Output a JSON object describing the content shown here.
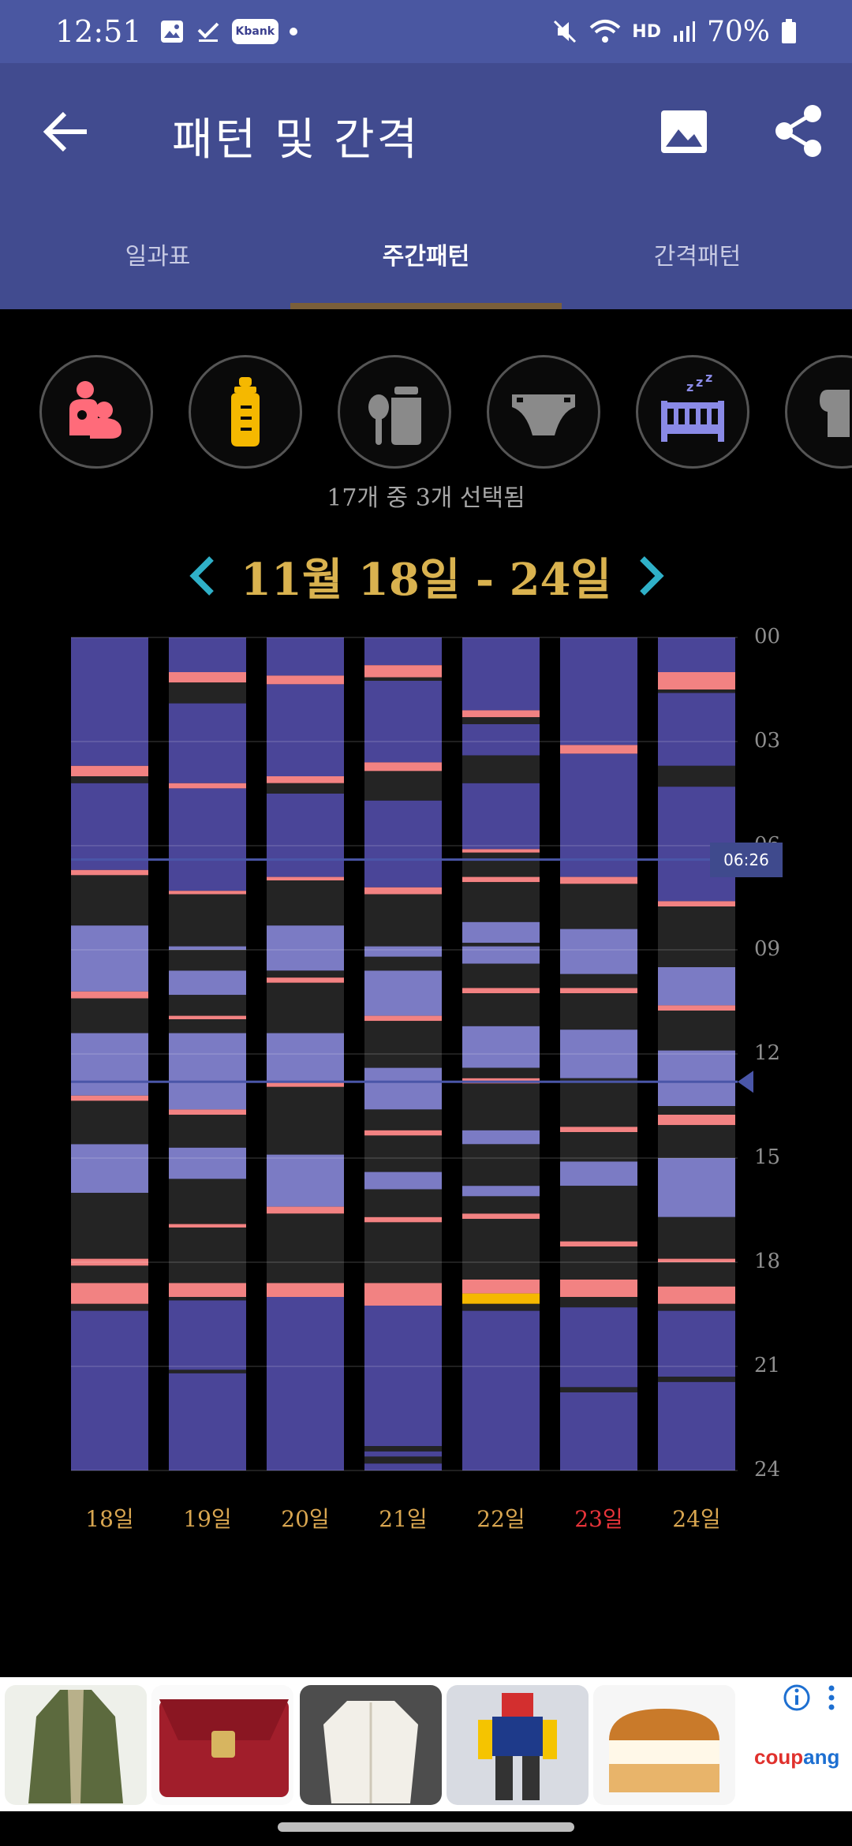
{
  "status_bar": {
    "time": "12:51",
    "kbank_label": "Kbank",
    "battery": "70%",
    "network_label": "HD"
  },
  "header": {
    "title": "패턴 및 간격"
  },
  "tabs": [
    {
      "label": "일과표"
    },
    {
      "label": "주간패턴"
    },
    {
      "label": "간격패턴"
    }
  ],
  "filters": {
    "icons": [
      "breastfeeding-icon",
      "bottle-icon",
      "baby-food-icon",
      "diaper-icon",
      "sleep-crib-icon",
      "pump-icon"
    ],
    "selection_text": "17개 중 3개 선택됨"
  },
  "week": {
    "label": "11월 18일 - 24일"
  },
  "chart_data": {
    "type": "heatmap",
    "y_ticks": [
      "00",
      "03",
      "06",
      "09",
      "12",
      "15",
      "18",
      "21",
      "24"
    ],
    "ylim": [
      0,
      24
    ],
    "days": [
      "18일",
      "19일",
      "20일",
      "21일",
      "22일",
      "23일",
      "24일"
    ],
    "highlight_day_index": 5,
    "now_marker": "06:26",
    "colors": {
      "sleep": "#4a4598",
      "nap": "#7b7bc4",
      "awake": "#242424",
      "feed": "#f28282",
      "bottle": "#f5b800"
    },
    "columns": [
      [
        [
          "sleep",
          0,
          3.7
        ],
        [
          "feed",
          3.7,
          4.0
        ],
        [
          "awake",
          4.0,
          4.2
        ],
        [
          "sleep",
          4.2,
          6.7
        ],
        [
          "feed",
          6.7,
          6.85
        ],
        [
          "awake",
          6.85,
          8.3
        ],
        [
          "nap",
          8.3,
          10.2
        ],
        [
          "feed",
          10.2,
          10.4
        ],
        [
          "awake",
          10.4,
          11.4
        ],
        [
          "nap",
          11.4,
          13.2
        ],
        [
          "feed",
          13.2,
          13.35
        ],
        [
          "awake",
          13.35,
          14.6
        ],
        [
          "nap",
          14.6,
          16.0
        ],
        [
          "awake",
          16.0,
          17.9
        ],
        [
          "feed",
          17.9,
          18.1
        ],
        [
          "awake",
          18.1,
          18.6
        ],
        [
          "feed",
          18.6,
          19.2
        ],
        [
          "awake",
          19.2,
          19.4
        ],
        [
          "sleep",
          19.4,
          24
        ]
      ],
      [
        [
          "sleep",
          0,
          1.0
        ],
        [
          "feed",
          1.0,
          1.3
        ],
        [
          "awake",
          1.3,
          1.9
        ],
        [
          "sleep",
          1.9,
          4.2
        ],
        [
          "feed",
          4.2,
          4.35
        ],
        [
          "sleep",
          4.35,
          7.3
        ],
        [
          "feed",
          7.3,
          7.4
        ],
        [
          "awake",
          7.4,
          8.9
        ],
        [
          "nap",
          8.9,
          9.0
        ],
        [
          "awake",
          9.0,
          9.6
        ],
        [
          "nap",
          9.6,
          10.3
        ],
        [
          "awake",
          10.3,
          10.9
        ],
        [
          "feed",
          10.9,
          11.0
        ],
        [
          "awake",
          11.0,
          11.4
        ],
        [
          "nap",
          11.4,
          13.6
        ],
        [
          "feed",
          13.6,
          13.75
        ],
        [
          "awake",
          13.75,
          14.7
        ],
        [
          "nap",
          14.7,
          15.6
        ],
        [
          "awake",
          15.6,
          16.9
        ],
        [
          "feed",
          16.9,
          17.0
        ],
        [
          "awake",
          17.0,
          18.6
        ],
        [
          "feed",
          18.6,
          19.0
        ],
        [
          "awake",
          19.0,
          19.1
        ],
        [
          "sleep",
          19.1,
          21.1
        ],
        [
          "awake",
          21.1,
          21.2
        ],
        [
          "sleep",
          21.2,
          24
        ]
      ],
      [
        [
          "sleep",
          0,
          1.1
        ],
        [
          "feed",
          1.1,
          1.35
        ],
        [
          "sleep",
          1.35,
          4.0
        ],
        [
          "feed",
          4.0,
          4.2
        ],
        [
          "awake",
          4.2,
          4.5
        ],
        [
          "sleep",
          4.5,
          6.9
        ],
        [
          "feed",
          6.9,
          7.0
        ],
        [
          "awake",
          7.0,
          8.3
        ],
        [
          "nap",
          8.3,
          9.6
        ],
        [
          "awake",
          9.6,
          9.8
        ],
        [
          "feed",
          9.8,
          9.95
        ],
        [
          "awake",
          9.95,
          11.4
        ],
        [
          "nap",
          11.4,
          12.8
        ],
        [
          "feed",
          12.8,
          12.95
        ],
        [
          "awake",
          12.95,
          14.9
        ],
        [
          "nap",
          14.9,
          16.4
        ],
        [
          "feed",
          16.4,
          16.6
        ],
        [
          "awake",
          16.6,
          18.6
        ],
        [
          "feed",
          18.6,
          19.0
        ],
        [
          "sleep",
          19.0,
          24
        ]
      ],
      [
        [
          "sleep",
          0,
          0.8
        ],
        [
          "feed",
          0.8,
          1.15
        ],
        [
          "awake",
          1.15,
          1.25
        ],
        [
          "sleep",
          1.25,
          3.6
        ],
        [
          "feed",
          3.6,
          3.85
        ],
        [
          "awake",
          3.85,
          4.7
        ],
        [
          "sleep",
          4.7,
          7.2
        ],
        [
          "feed",
          7.2,
          7.4
        ],
        [
          "awake",
          7.4,
          8.9
        ],
        [
          "nap",
          8.9,
          9.2
        ],
        [
          "awake",
          9.2,
          9.6
        ],
        [
          "nap",
          9.6,
          10.9
        ],
        [
          "feed",
          10.9,
          11.05
        ],
        [
          "awake",
          11.05,
          12.4
        ],
        [
          "nap",
          12.4,
          13.6
        ],
        [
          "awake",
          13.6,
          14.2
        ],
        [
          "feed",
          14.2,
          14.35
        ],
        [
          "awake",
          14.35,
          15.4
        ],
        [
          "nap",
          15.4,
          15.9
        ],
        [
          "awake",
          15.9,
          16.7
        ],
        [
          "feed",
          16.7,
          16.85
        ],
        [
          "awake",
          16.85,
          18.6
        ],
        [
          "feed",
          18.6,
          19.25
        ],
        [
          "sleep",
          19.25,
          23.3
        ],
        [
          "awake",
          23.3,
          23.45
        ],
        [
          "sleep",
          23.45,
          23.6
        ],
        [
          "awake",
          23.6,
          23.8
        ],
        [
          "sleep",
          23.8,
          24
        ]
      ],
      [
        [
          "sleep",
          0,
          2.1
        ],
        [
          "feed",
          2.1,
          2.3
        ],
        [
          "awake",
          2.3,
          2.5
        ],
        [
          "sleep",
          2.5,
          3.4
        ],
        [
          "awake",
          3.4,
          4.2
        ],
        [
          "sleep",
          4.2,
          6.1
        ],
        [
          "feed",
          6.1,
          6.2
        ],
        [
          "awake",
          6.2,
          6.9
        ],
        [
          "feed",
          6.9,
          7.05
        ],
        [
          "awake",
          7.05,
          8.2
        ],
        [
          "nap",
          8.2,
          8.8
        ],
        [
          "awake",
          8.8,
          8.9
        ],
        [
          "nap",
          8.9,
          9.4
        ],
        [
          "awake",
          9.4,
          10.1
        ],
        [
          "feed",
          10.1,
          10.25
        ],
        [
          "awake",
          10.25,
          11.2
        ],
        [
          "nap",
          11.2,
          12.4
        ],
        [
          "awake",
          12.4,
          12.7
        ],
        [
          "feed",
          12.7,
          12.85
        ],
        [
          "awake",
          12.85,
          14.2
        ],
        [
          "nap",
          14.2,
          14.6
        ],
        [
          "awake",
          14.6,
          15.8
        ],
        [
          "nap",
          15.8,
          16.1
        ],
        [
          "awake",
          16.1,
          16.6
        ],
        [
          "feed",
          16.6,
          16.75
        ],
        [
          "awake",
          16.75,
          18.5
        ],
        [
          "feed",
          18.5,
          18.9
        ],
        [
          "bottle",
          18.9,
          19.2
        ],
        [
          "awake",
          19.2,
          19.4
        ],
        [
          "sleep",
          19.4,
          24
        ]
      ],
      [
        [
          "sleep",
          0,
          3.1
        ],
        [
          "feed",
          3.1,
          3.35
        ],
        [
          "sleep",
          3.35,
          6.9
        ],
        [
          "feed",
          6.9,
          7.1
        ],
        [
          "awake",
          7.1,
          8.4
        ],
        [
          "nap",
          8.4,
          9.7
        ],
        [
          "awake",
          9.7,
          10.1
        ],
        [
          "feed",
          10.1,
          10.25
        ],
        [
          "awake",
          10.25,
          11.3
        ],
        [
          "nap",
          11.3,
          12.7
        ],
        [
          "awake",
          12.7,
          14.1
        ],
        [
          "feed",
          14.1,
          14.25
        ],
        [
          "awake",
          14.25,
          15.1
        ],
        [
          "nap",
          15.1,
          15.8
        ],
        [
          "awake",
          15.8,
          17.4
        ],
        [
          "feed",
          17.4,
          17.55
        ],
        [
          "awake",
          17.55,
          18.5
        ],
        [
          "feed",
          18.5,
          19.0
        ],
        [
          "awake",
          19.0,
          19.3
        ],
        [
          "sleep",
          19.3,
          21.6
        ],
        [
          "awake",
          21.6,
          21.75
        ],
        [
          "sleep",
          21.75,
          24
        ]
      ],
      [
        [
          "sleep",
          0,
          1.0
        ],
        [
          "feed",
          1.0,
          1.5
        ],
        [
          "awake",
          1.5,
          1.6
        ],
        [
          "sleep",
          1.6,
          3.7
        ],
        [
          "awake",
          3.7,
          4.3
        ],
        [
          "sleep",
          4.3,
          7.6
        ],
        [
          "feed",
          7.6,
          7.75
        ],
        [
          "awake",
          7.75,
          9.5
        ],
        [
          "nap",
          9.5,
          10.6
        ],
        [
          "feed",
          10.6,
          10.75
        ],
        [
          "awake",
          10.75,
          11.9
        ],
        [
          "nap",
          11.9,
          13.5
        ],
        [
          "awake",
          13.5,
          13.75
        ],
        [
          "feed",
          13.75,
          14.05
        ],
        [
          "awake",
          14.05,
          15.0
        ],
        [
          "nap",
          15.0,
          16.7
        ],
        [
          "awake",
          16.7,
          17.9
        ],
        [
          "feed",
          17.9,
          18.0
        ],
        [
          "awake",
          18.0,
          18.7
        ],
        [
          "feed",
          18.7,
          19.2
        ],
        [
          "awake",
          19.2,
          19.4
        ],
        [
          "sleep",
          19.4,
          21.3
        ],
        [
          "awake",
          21.3,
          21.45
        ],
        [
          "sleep",
          21.45,
          24
        ]
      ]
    ],
    "markers": [
      6.4,
      12.8
    ]
  },
  "ads": {
    "items": [
      "coat",
      "wallet",
      "jacket",
      "robot-toy",
      "cake"
    ],
    "brand_part1": "coup",
    "brand_part2": "ang"
  }
}
